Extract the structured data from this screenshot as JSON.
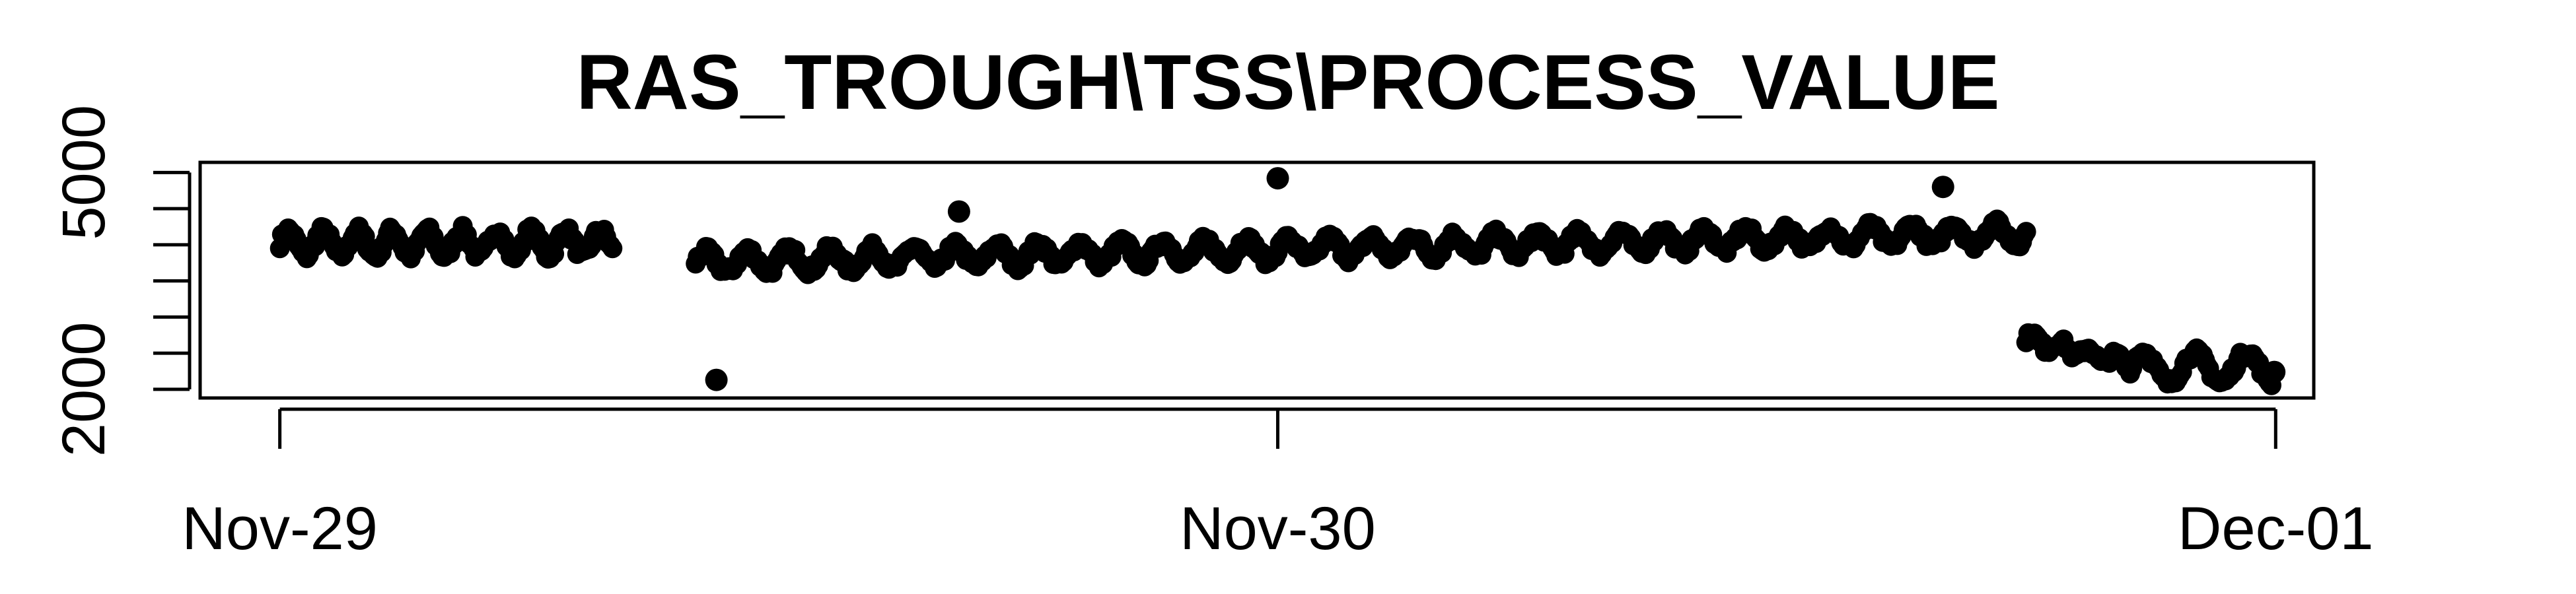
{
  "chart_data": {
    "type": "scatter",
    "title": "RAS_TROUGH\\TSS\\PROCESS_VALUE",
    "xlabel": "",
    "ylabel": "",
    "x_axis": {
      "type": "date",
      "ticks": [
        {
          "value": "2022-11-29T00:00",
          "label": "Nov-29"
        },
        {
          "value": "2022-11-30T00:00",
          "label": "Nov-30"
        },
        {
          "value": "2022-12-01T00:00",
          "label": "Dec-01"
        }
      ],
      "xlim": [
        "2022-11-28T22:05",
        "2022-12-01T00:55"
      ]
    },
    "y_axis": {
      "ticks": [
        {
          "value": 2000,
          "label": "2000"
        },
        {
          "value": 2500,
          "label": ""
        },
        {
          "value": 3000,
          "label": ""
        },
        {
          "value": 3500,
          "label": ""
        },
        {
          "value": 4000,
          "label": ""
        },
        {
          "value": 4500,
          "label": ""
        },
        {
          "value": 5000,
          "label": "5000"
        }
      ],
      "ylim": [
        1880,
        5140
      ]
    },
    "grid": false,
    "legend": "none",
    "marker_color": "#000000",
    "segments": [
      {
        "start": "2022-11-29T00:00",
        "end": "2022-11-29T08:00",
        "base": 4020,
        "slope": 0,
        "amp": 175,
        "period_min": 50,
        "noise": 70
      },
      {
        "start": "2022-11-29T10:00",
        "end": "2022-11-30T18:00",
        "base": 3760,
        "slope": 400,
        "amp": 145,
        "period_min": 60,
        "noise": 65
      },
      {
        "start": "2022-11-30T18:00",
        "end": "2022-11-30T20:30",
        "base": 2700,
        "slope": -350,
        "amp": 80,
        "period_min": 40,
        "noise": 55
      },
      {
        "start": "2022-11-30T20:30",
        "end": "2022-11-30T23:55",
        "base": 2300,
        "slope": 0,
        "amp": 210,
        "period_min": 75,
        "noise": 65
      }
    ],
    "outliers": [
      {
        "x": "2022-11-29T10:30",
        "y": 2130
      },
      {
        "x": "2022-11-29T16:20",
        "y": 4460
      },
      {
        "x": "2022-11-30T00:00",
        "y": 4920
      },
      {
        "x": "2022-11-30T16:00",
        "y": 4800
      },
      {
        "x": "2022-11-30T23:58",
        "y": 2240
      }
    ]
  }
}
